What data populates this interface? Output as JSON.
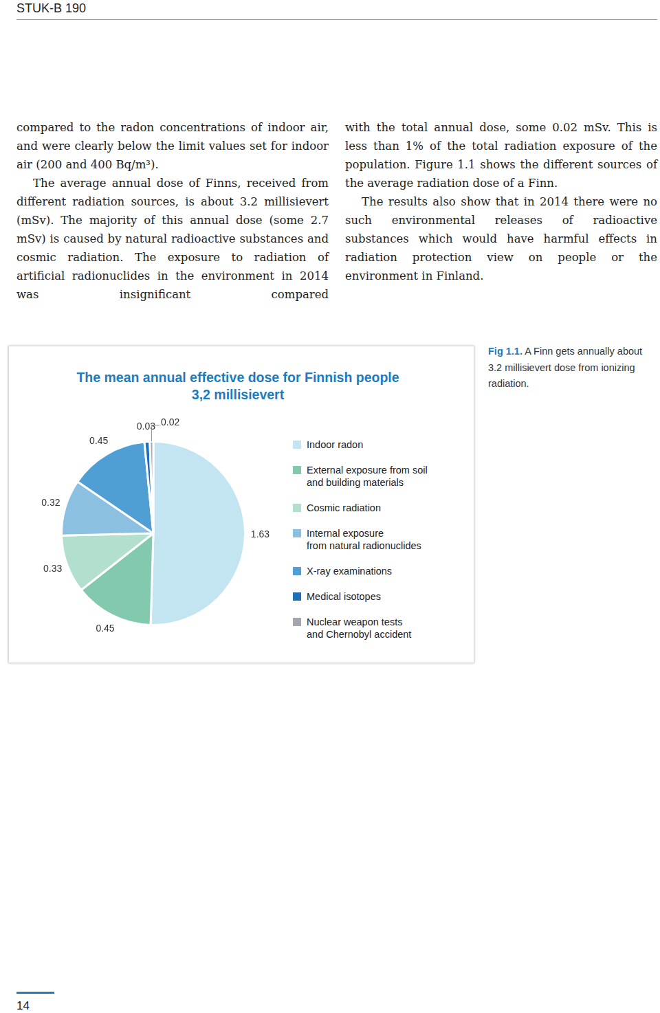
{
  "header": "STUK-B 190",
  "body": {
    "left": [
      "compared to the radon concentrations of indoor air, and were clearly below the limit values set for indoor air (200 and 400 Bq/m³).",
      "The average annual dose of Finns, received from different radiation sources, is about 3.2 millisievert (mSv). The majority of this annual dose (some 2.7 mSv) is caused by natural radioactive substances and cosmic radiation. The exposure to radiation of artificial radionuclides in the environment in 2014 was insignificant compared"
    ],
    "right": [
      "with the total annual dose, some 0.02 mSv. This is less than 1% of the total radiation exposure of the population. Figure 1.1 shows the different sources of the average radiation dose of a Finn.",
      "The results also show that in 2014 there were no such environmental releases of radioactive substances which would have harmful effects in radiation protection view on people or the environment in Finland."
    ]
  },
  "chart_data": {
    "type": "pie",
    "title": "The mean annual effective dose for Finnish people",
    "subtitle": "3,2 millisievert",
    "categories": [
      "Indoor radon",
      "External exposure from soil\nand building materials",
      "Cosmic radiation",
      "Internal exposure\nfrom natural radionuclides",
      "X-ray examinations",
      "Medical isotopes",
      "Nuclear weapon tests\nand Chernobyl accident"
    ],
    "values": [
      1.63,
      0.45,
      0.33,
      0.32,
      0.45,
      0.03,
      0.02
    ],
    "colors": [
      "#c3e4f1",
      "#82c9ad",
      "#b3dfcf",
      "#8cc0e1",
      "#4f9fd4",
      "#1f6fb8",
      "#a3a6aa"
    ],
    "data_labels": true,
    "legend": "right"
  },
  "figure": {
    "caption_label": "Fig 1.1.",
    "caption": "A Finn gets annually about 3.2 millisievert dose from ionizing radiation."
  },
  "page_number": "14"
}
